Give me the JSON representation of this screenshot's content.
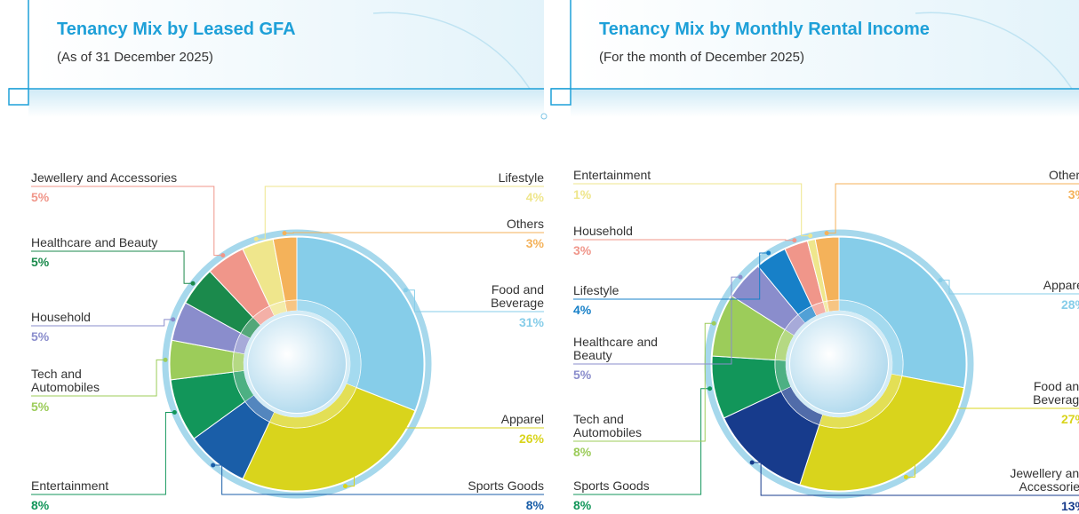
{
  "chart_data": [
    {
      "type": "pie",
      "title": "Tenancy Mix by Leased GFA",
      "subtitle": "(As of 31 December 2025)",
      "categories": [
        "Food and Beverage",
        "Apparel",
        "Sports Goods",
        "Entertainment",
        "Tech and Automobiles",
        "Household",
        "Healthcare and Beauty",
        "Jewellery and Accessories",
        "Lifestyle",
        "Others"
      ],
      "values": [
        31,
        26,
        8,
        8,
        5,
        5,
        5,
        5,
        4,
        3
      ],
      "value_labels": [
        "31%",
        "26%",
        "8%",
        "8%",
        "5%",
        "5%",
        "5%",
        "5%",
        "4%",
        "3%"
      ],
      "colors": [
        "#86cde9",
        "#d9d41c",
        "#1a5ea8",
        "#12965a",
        "#9ccc5a",
        "#8a8dcc",
        "#1b8a4c",
        "#f0968a",
        "#efe68c",
        "#f4b25a"
      ]
    },
    {
      "type": "pie",
      "title": "Tenancy Mix by Monthly Rental Income",
      "subtitle": "(For the month of December 2025)",
      "categories": [
        "Apparel",
        "Food and Beverage",
        "Jewellery and Accessories",
        "Sports Goods",
        "Tech and Automobiles",
        "Healthcare and Beauty",
        "Lifestyle",
        "Household",
        "Entertainment",
        "Others"
      ],
      "values": [
        28,
        27,
        13,
        8,
        8,
        5,
        4,
        3,
        1,
        3
      ],
      "value_labels": [
        "28%",
        "27%",
        "13%",
        "8%",
        "8%",
        "5%",
        "4%",
        "3%",
        "1%",
        "3%"
      ],
      "colors": [
        "#86cde9",
        "#d9d41c",
        "#173b8c",
        "#12965a",
        "#9ccc5a",
        "#8a8dcc",
        "#1780c8",
        "#f0968a",
        "#efe68c",
        "#f4b25a"
      ]
    }
  ]
}
